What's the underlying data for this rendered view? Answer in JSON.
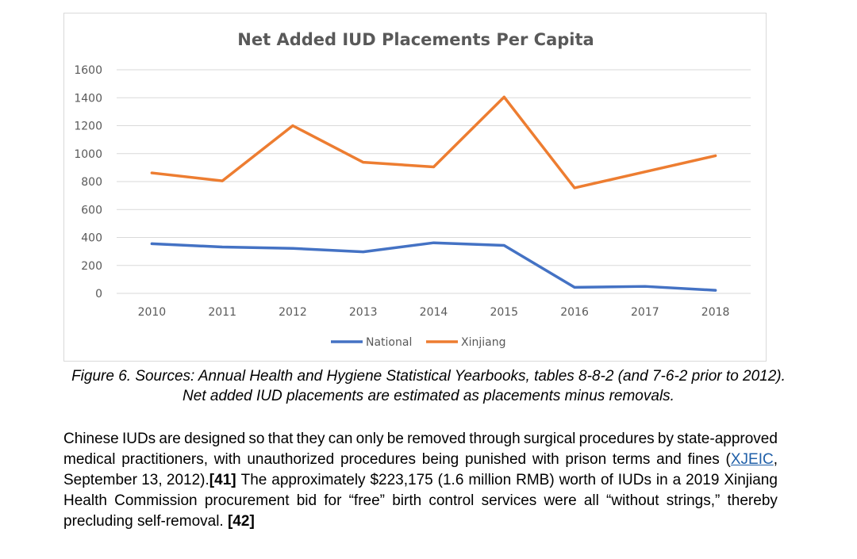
{
  "chart_data": {
    "type": "line",
    "title": "Net Added IUD Placements Per Capita",
    "categories": [
      "2010",
      "2011",
      "2012",
      "2013",
      "2014",
      "2015",
      "2016",
      "2017",
      "2018"
    ],
    "y_ticks": [
      "0",
      "200",
      "400",
      "600",
      "800",
      "1000",
      "1200",
      "1400",
      "1600"
    ],
    "ylim": [
      0,
      1600
    ],
    "grid": true,
    "legend_position": "bottom",
    "series": [
      {
        "name": "National",
        "color": "#4472c4",
        "values": [
          355,
          332,
          322,
          297,
          362,
          343,
          43,
          50,
          22
        ]
      },
      {
        "name": "Xinjiang",
        "color": "#ed7d31",
        "values": [
          862,
          805,
          1200,
          938,
          905,
          1405,
          755,
          870,
          985
        ]
      }
    ]
  },
  "caption": {
    "line1": "Figure 6. Sources: Annual Health and Hygiene Statistical Yearbooks, tables 8-8-2 (and 7-6-2 prior to 2012).",
    "line2": "Net added IUD placements are estimated as placements minus removals."
  },
  "body": {
    "line1": "Chinese IUDs are designed so that they can only be removed through surgical procedures by state-approved",
    "line2_before": "medical practitioners, with unauthorized procedures being punished with prison terms and fines (",
    "link": "XJEIC",
    "line2_after": ",",
    "line3_before": "September 13, 2012).",
    "ref1": "[41]",
    "line3_after": "The approximately $223,175 (1.6 million RMB) worth of IUDs in a 2019 Xinjiang",
    "line4": "Health Commission procurement bid for “free” birth control services were all “without strings,” thereby",
    "line5": "precluding self-removal.",
    "ref2": "[42]"
  }
}
